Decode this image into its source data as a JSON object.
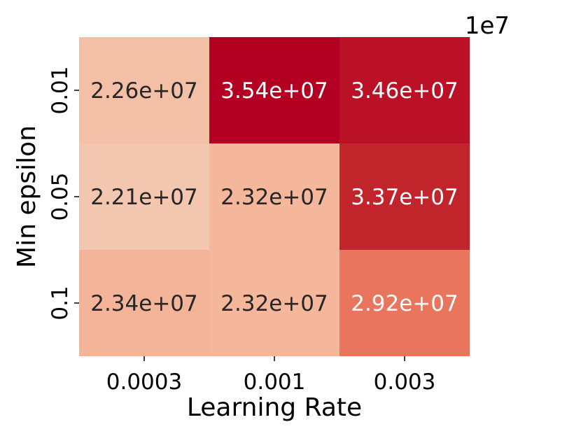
{
  "chart_data": {
    "type": "heatmap",
    "title": "",
    "xlabel": "Learning Rate",
    "ylabel": "Min epsilon",
    "x_categories": [
      "0.0003",
      "0.001",
      "0.003"
    ],
    "y_categories": [
      "0.01",
      "0.05",
      "0.1"
    ],
    "values": [
      [
        22600000,
        35400000,
        34600000
      ],
      [
        22100000,
        23200000,
        33700000
      ],
      [
        23400000,
        23200000,
        29200000
      ]
    ],
    "cell_labels": [
      [
        "2.26e+07",
        "3.54e+07",
        "3.46e+07"
      ],
      [
        "2.21e+07",
        "2.32e+07",
        "3.37e+07"
      ],
      [
        "2.34e+07",
        "2.32e+07",
        "2.92e+07"
      ]
    ],
    "offset_text": "1e7",
    "colormap": "Reds",
    "colors": {
      "low": "#f3c6b0",
      "mid_low": "#f4b498",
      "mid": "#e8735a",
      "high": "#c52a2e",
      "max": "#b30022",
      "text_dark": "#262626",
      "text_light": "#ffffff"
    }
  }
}
